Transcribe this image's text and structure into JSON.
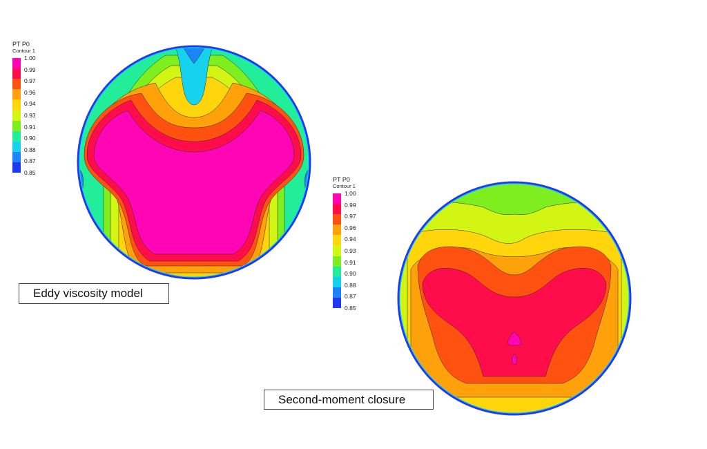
{
  "legend": {
    "title": "PT P0",
    "subtitle": "Contour 1",
    "ticks": [
      "1.00",
      "0.99",
      "0.97",
      "0.96",
      "0.94",
      "0.93",
      "0.91",
      "0.90",
      "0.88",
      "0.87",
      "0.85"
    ],
    "colors": [
      "#ff05b4",
      "#ff0d4a",
      "#ff5210",
      "#ffa10a",
      "#ffd60b",
      "#d2f514",
      "#7fee1e",
      "#22ee9a",
      "#17d2ec",
      "#1b84f6",
      "#1f3af0"
    ]
  },
  "captions": {
    "left": "Eddy viscosity model",
    "right": "Second-moment closure"
  }
}
